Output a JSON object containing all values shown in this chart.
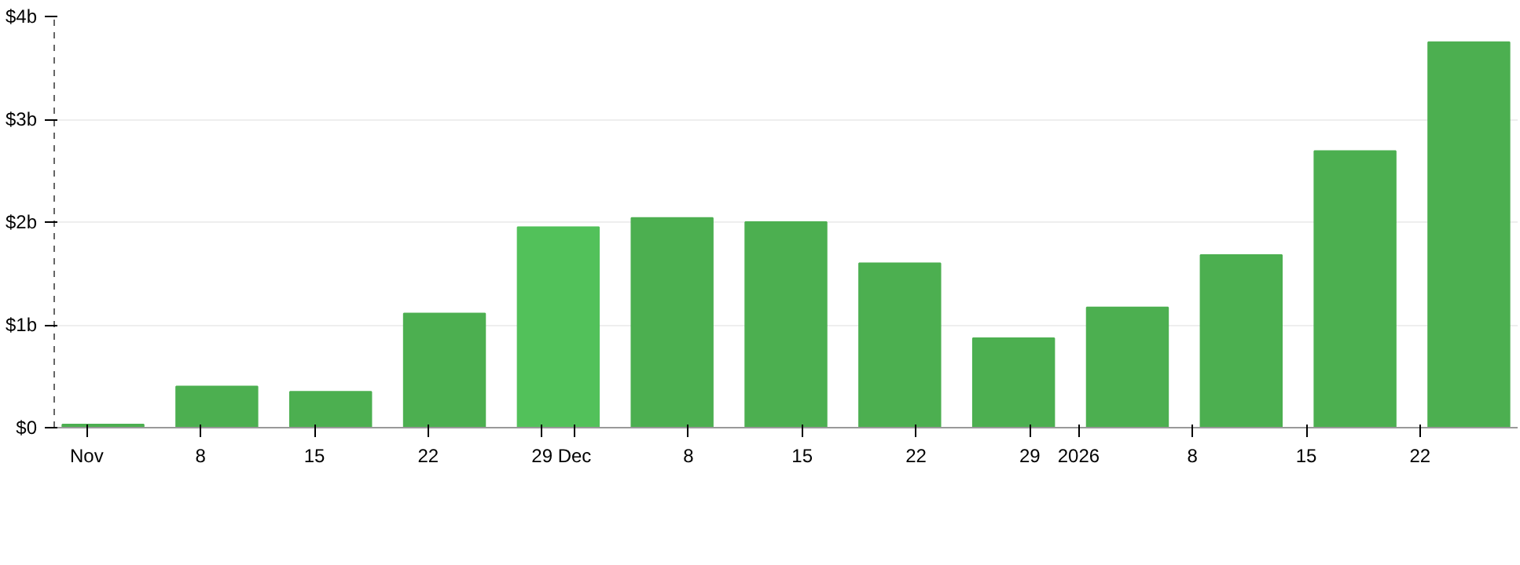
{
  "chart_data": {
    "type": "bar",
    "x": [
      "2025-11-02",
      "2025-11-09",
      "2025-11-16",
      "2025-11-23",
      "2025-11-30",
      "2025-12-07",
      "2025-12-14",
      "2025-12-21",
      "2025-12-28",
      "2026-01-04",
      "2026-01-11",
      "2026-01-18",
      "2026-01-25"
    ],
    "values": [
      0.03,
      0.4,
      0.35,
      1.11,
      1.95,
      2.04,
      2.0,
      1.6,
      0.87,
      1.17,
      1.68,
      2.69,
      3.75
    ],
    "colors": [
      "#4caf50",
      "#4caf50",
      "#4caf50",
      "#4caf50",
      "#52c15a",
      "#4caf50",
      "#4caf50",
      "#4caf50",
      "#4caf50",
      "#4caf50",
      "#4caf50",
      "#4caf50",
      "#4caf50"
    ],
    "xlim": [
      "2025-10-30",
      "2026-01-28"
    ],
    "xticks": [
      {
        "value": "2025-11-01",
        "label": "Nov"
      },
      {
        "value": "2025-11-08",
        "label": "8"
      },
      {
        "value": "2025-11-15",
        "label": "15"
      },
      {
        "value": "2025-11-22",
        "label": "22"
      },
      {
        "value": "2025-11-29",
        "label": "29"
      },
      {
        "value": "2025-12-01",
        "label": "Dec"
      },
      {
        "value": "2025-12-08",
        "label": "8"
      },
      {
        "value": "2025-12-15",
        "label": "15"
      },
      {
        "value": "2025-12-22",
        "label": "22"
      },
      {
        "value": "2025-12-29",
        "label": "29"
      },
      {
        "value": "2026-01-01",
        "label": "2026"
      },
      {
        "value": "2026-01-08",
        "label": "8"
      },
      {
        "value": "2026-01-15",
        "label": "15"
      },
      {
        "value": "2026-01-22",
        "label": "22"
      }
    ],
    "ylim": [
      0,
      4
    ],
    "yticks": [
      {
        "value": 0,
        "label": "$0"
      },
      {
        "value": 1,
        "label": "$1b"
      },
      {
        "value": 2,
        "label": "$2b"
      },
      {
        "value": 3,
        "label": "$3b"
      },
      {
        "value": 4,
        "label": "$4b"
      }
    ],
    "grid": "y"
  }
}
